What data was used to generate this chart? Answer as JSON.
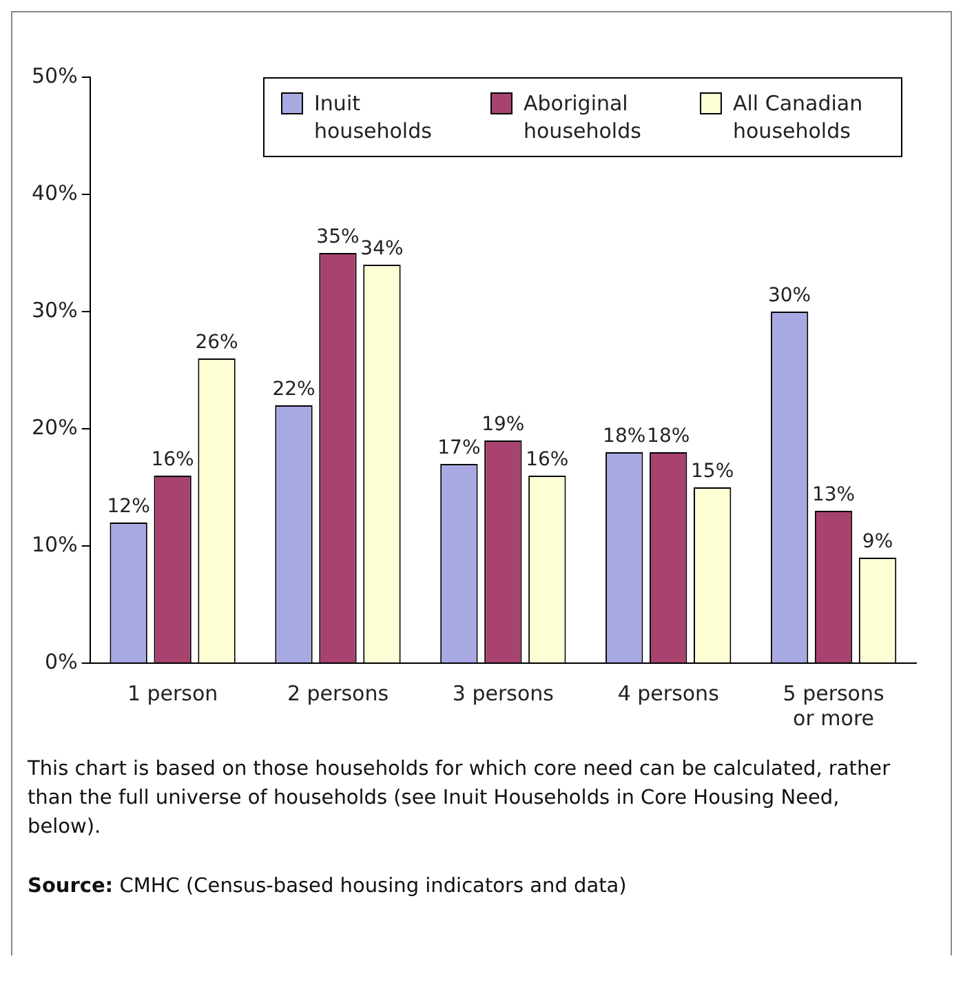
{
  "chart_data": {
    "type": "bar",
    "categories": [
      "1 person",
      "2 persons",
      "3 persons",
      "4 persons",
      "5 persons or more"
    ],
    "series": [
      {
        "name": "Inuit households",
        "color": "#a9a9e3",
        "values": [
          12,
          22,
          17,
          18,
          30
        ],
        "value_labels": [
          "12%",
          "22%",
          "17%",
          "18%",
          "30%"
        ]
      },
      {
        "name": "Aboriginal households",
        "color": "#a8426e",
        "values": [
          16,
          35,
          19,
          18,
          13
        ],
        "value_labels": [
          "16%",
          "35%",
          "19%",
          "18%",
          "13%"
        ]
      },
      {
        "name": "All Canadian households",
        "color": "#ffffd6",
        "values": [
          26,
          34,
          16,
          15,
          9
        ],
        "value_labels": [
          "26%",
          "34%",
          "16%",
          "15%",
          "9%"
        ]
      }
    ],
    "ylim": [
      0,
      50
    ],
    "yticks": [
      {
        "value": 0,
        "label": "0%"
      },
      {
        "value": 10,
        "label": "10%"
      },
      {
        "value": 20,
        "label": "20%"
      },
      {
        "value": 30,
        "label": "30%"
      },
      {
        "value": 40,
        "label": "40%"
      },
      {
        "value": 50,
        "label": "50%"
      }
    ],
    "grid": false,
    "legend": "top right",
    "annotations": [
      "This chart is based on those households for which core need can be calculated,  rather than the full universe of households (see Inuit Households in Core Housing Need, below).",
      "Source: CMHC (Census-based housing indicators and data)"
    ]
  }
}
